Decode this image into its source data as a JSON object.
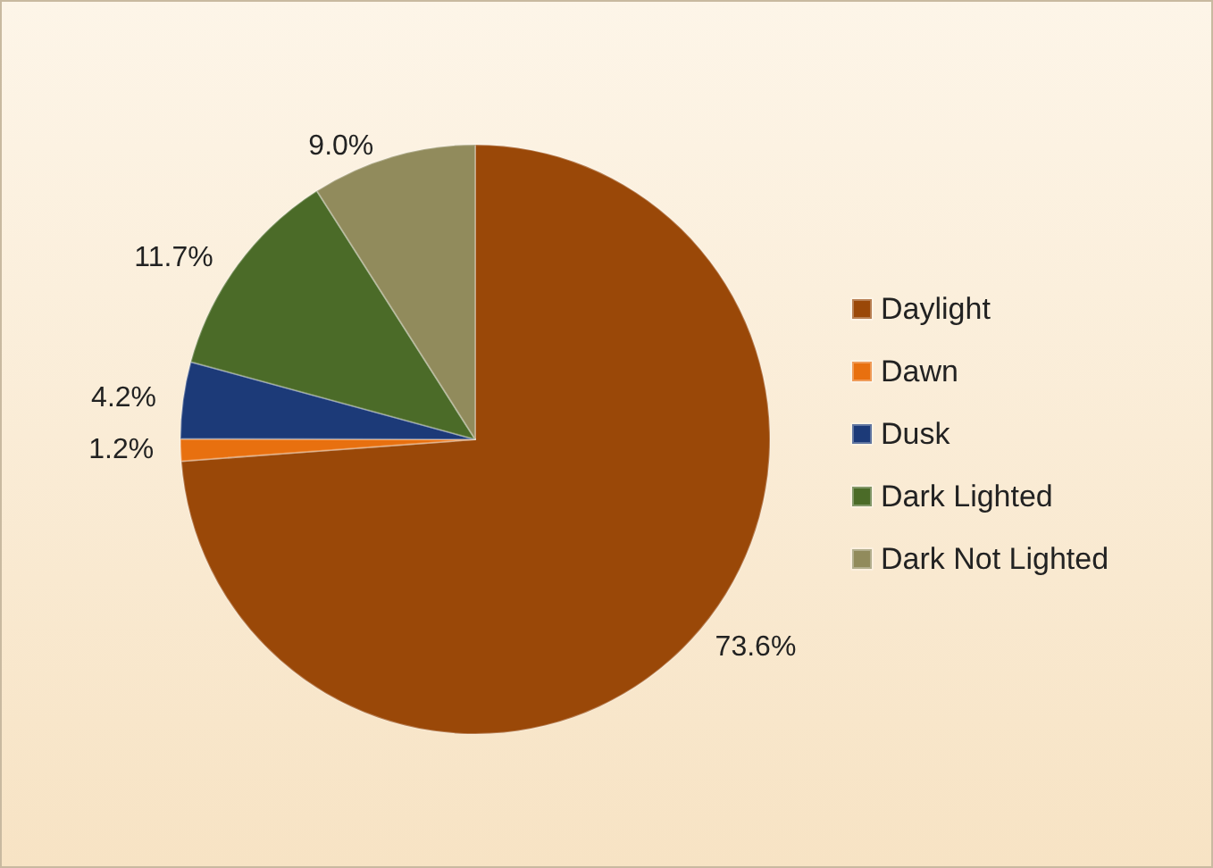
{
  "chart_data": {
    "type": "pie",
    "categories": [
      "Daylight",
      "Dawn",
      "Dusk",
      "Dark Lighted",
      "Dark Not Lighted"
    ],
    "values": [
      73.6,
      1.2,
      4.2,
      11.7,
      9.0
    ],
    "value_labels": [
      "73.6%",
      "1.2%",
      "4.2%",
      "11.7%",
      "9.0%"
    ],
    "colors": [
      "#9a4808",
      "#e8700f",
      "#1c3a78",
      "#4b6b28",
      "#918b5c"
    ],
    "legend": "right"
  }
}
